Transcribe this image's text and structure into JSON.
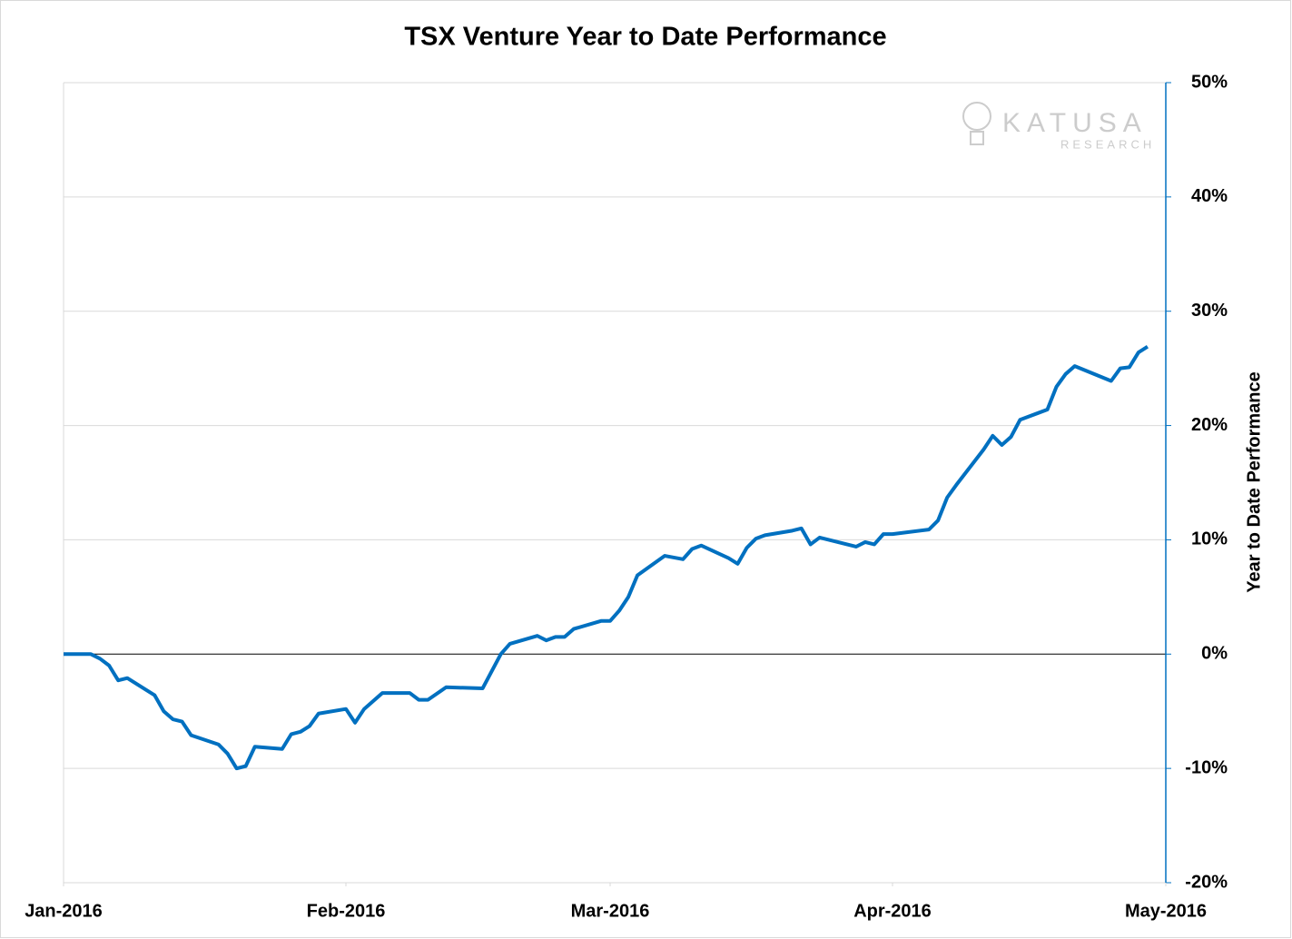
{
  "chart_data": {
    "type": "line",
    "title": "TSX Venture Year to Date Performance",
    "y_axis_label": "Year to Date Performance",
    "watermark": {
      "name": "KATUSA",
      "sub": "RESEARCH"
    },
    "xlim": [
      0,
      121
    ],
    "xticks": [
      {
        "value": 0,
        "label": "Jan-2016"
      },
      {
        "value": 31,
        "label": "Feb-2016"
      },
      {
        "value": 60,
        "label": "Mar-2016"
      },
      {
        "value": 91,
        "label": "Apr-2016"
      },
      {
        "value": 121,
        "label": "May-2016"
      }
    ],
    "ylim": [
      -20,
      50
    ],
    "yticks": [
      {
        "value": 50,
        "label": "50%"
      },
      {
        "value": 40,
        "label": "40%"
      },
      {
        "value": 30,
        "label": "30%"
      },
      {
        "value": 20,
        "label": "20%"
      },
      {
        "value": 10,
        "label": "10%"
      },
      {
        "value": 0,
        "label": "0%"
      },
      {
        "value": -10,
        "label": "-10%"
      },
      {
        "value": -20,
        "label": "-20%"
      }
    ],
    "grid": true,
    "y_axis_side": "right",
    "series": [
      {
        "name": "TSX Venture",
        "color": "#0070c0",
        "x": [
          0,
          1,
          2,
          3,
          4,
          5,
          6,
          7,
          10,
          11,
          12,
          13,
          14,
          17,
          18,
          19,
          20,
          21,
          24,
          25,
          26,
          27,
          28,
          31,
          32,
          33,
          35,
          38,
          39,
          40,
          42,
          46,
          48,
          49,
          52,
          53,
          54,
          55,
          56,
          59,
          60,
          61,
          62,
          63,
          66,
          68,
          69,
          70,
          73,
          74,
          75,
          76,
          77,
          80,
          81,
          82,
          83,
          87,
          88,
          89,
          90,
          91,
          95,
          96,
          97,
          98,
          101,
          102,
          103,
          104,
          105,
          108,
          109,
          110,
          111,
          115,
          116,
          117,
          118,
          119
        ],
        "values": [
          0,
          0,
          0,
          0,
          -0.4,
          -1.0,
          -2.3,
          -2.1,
          -3.6,
          -5.0,
          -5.7,
          -5.9,
          -7.1,
          -7.9,
          -8.7,
          -10.0,
          -9.8,
          -8.1,
          -8.3,
          -7.0,
          -6.8,
          -6.3,
          -5.2,
          -4.8,
          -6.0,
          -4.8,
          -3.4,
          -3.4,
          -4.0,
          -4.0,
          -2.9,
          -3.0,
          0,
          0.9,
          1.6,
          1.2,
          1.5,
          1.5,
          2.2,
          2.9,
          2.9,
          3.8,
          5.0,
          6.9,
          8.6,
          8.3,
          9.2,
          9.5,
          8.4,
          7.9,
          9.3,
          10.1,
          10.4,
          10.8,
          11.0,
          9.6,
          10.2,
          9.4,
          9.8,
          9.6,
          10.5,
          10.5,
          10.9,
          11.7,
          13.7,
          14.8,
          17.9,
          19.1,
          18.3,
          19.0,
          20.5,
          21.4,
          23.4,
          24.5,
          25.2,
          23.9,
          25.0,
          25.1,
          26.4,
          26.9
        ]
      }
    ]
  }
}
